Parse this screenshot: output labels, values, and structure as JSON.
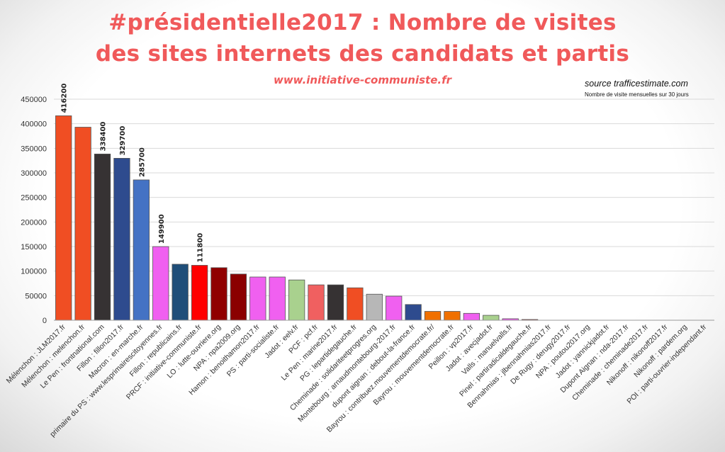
{
  "header": {
    "title_line1": "#présidentielle2017 : Nombre de visites",
    "title_line2": "des sites internets des candidats et partis",
    "website": "www.initiative-communiste.fr",
    "source": "source trafficestimate.com",
    "source_note": "Nombre de visite mensuelles sur 30 jours"
  },
  "chart_data": {
    "type": "bar",
    "title": "#présidentielle2017 : Nombre de visites des sites internets des candidats et partis",
    "xlabel": "",
    "ylabel": "",
    "ylim": [
      0,
      450000
    ],
    "yticks": [
      0,
      50000,
      100000,
      150000,
      200000,
      250000,
      300000,
      350000,
      400000,
      450000
    ],
    "grid": true,
    "legend": "none",
    "categories": [
      "Mélenchon : JLM2017.fr",
      "Mélenchon : melenchon.fr",
      "Le Pen : frontnational.com",
      "Fillon : fillon2017.fr",
      "Macron : en-marche.fr",
      "primaire du PS : www.lesprimairescitoyennes.fr",
      "Fillon : republicains.fr",
      "PRCF : initiative-communiste.fr",
      "LO : lutte-ouvriere.org",
      "NPA : npa2009.org",
      "Hamon : benoithamon2017.fr",
      "PS : parti-socialiste.fr",
      "Jadot : eelv.fr",
      "PCF : pcf.fr",
      "Le Pen : marine2017.fr",
      "PG : lepartidegauche.fr",
      "Cheminade : solidariteetprogres.org",
      "Montebourg : arnaudmontebourg-2017.fr",
      "dupont aignan : debout-la-france.fr",
      "Bayrou : contribuez.mouvementdemocrate.fr/",
      "Bayrou : mouvementdemocrate.fr",
      "Peillon : vp2017.fr",
      "Jadot : avecjadot.fr",
      "Valls : manuelvalls.fr",
      "Pinel : partiradicaldegauche.fr",
      "Bennahmias : jlbennahmias2017.fr",
      "De Rugy : derugy2017.fr",
      "NPA : poutou2017.org",
      "Jadot : yannickjadot.fr",
      "Dupont Aignan : nda-2017.fr",
      "Cheminade : cheminade2017.fr",
      "Nikonoff : nikonoff2017.fr",
      "Nikonoff : pardem.org",
      "POI : parti-ouvrier-independant.fr"
    ],
    "values": [
      416200,
      393000,
      338400,
      329700,
      285700,
      149900,
      114000,
      111800,
      107000,
      94000,
      88000,
      88000,
      82000,
      72000,
      72000,
      66000,
      53000,
      49000,
      32000,
      18000,
      18000,
      14000,
      10000,
      3000,
      1500,
      0,
      0,
      0,
      0,
      0,
      0,
      0,
      0,
      0
    ],
    "data_labels": [
      "416200",
      "",
      "338400",
      "329700",
      "285700",
      "149900",
      "",
      "111800",
      "",
      "",
      "",
      "",
      "",
      "",
      "",
      "",
      "",
      "",
      "",
      "",
      "",
      "",
      "",
      "",
      "",
      "",
      "",
      "",
      "",
      "",
      "",
      "",
      "",
      ""
    ],
    "colors": [
      "#f04e23",
      "#f04e23",
      "#363233",
      "#2e4b8e",
      "#4472c4",
      "#f060f0",
      "#1f4e79",
      "#ff0000",
      "#900000",
      "#8b0000",
      "#f060f0",
      "#f060f0",
      "#a9d18e",
      "#f06060",
      "#363233",
      "#f04e23",
      "#b7b7b7",
      "#f060f0",
      "#2e4b8e",
      "#f07000",
      "#f07000",
      "#f060f0",
      "#a9d18e",
      "#f060f0",
      "#c00000",
      "#c0c0c0",
      "#cccccc",
      "#cccccc",
      "#cccccc",
      "#cccccc",
      "#cccccc",
      "#cccccc",
      "#cccccc",
      "#cccccc"
    ]
  }
}
